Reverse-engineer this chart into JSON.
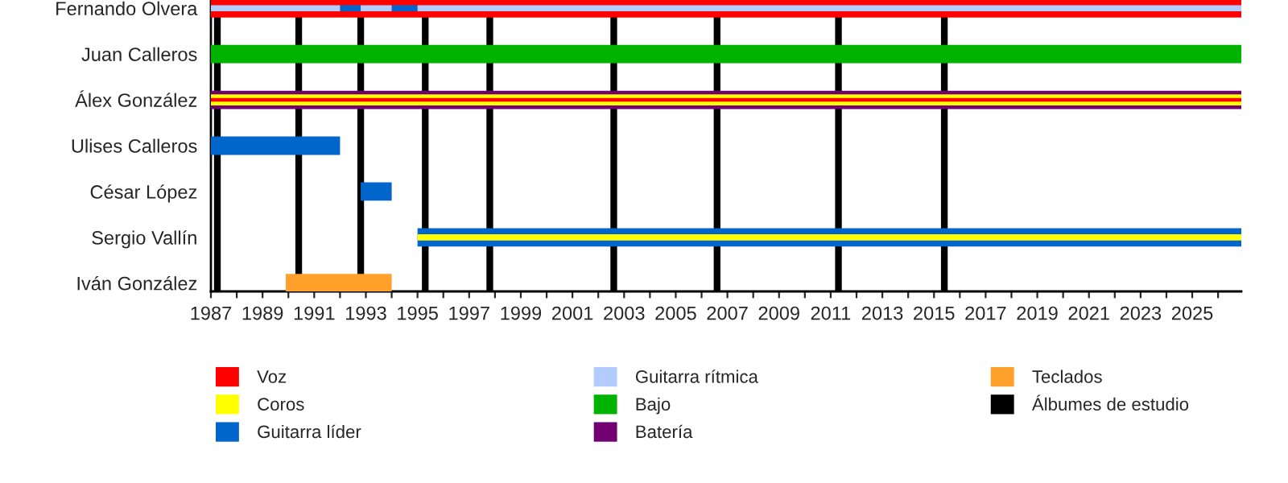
{
  "chart_data": {
    "type": "bar",
    "orientation": "horizontal",
    "categories": [
      "Fernando Olvera",
      "Juan Calleros",
      "Álex González",
      "Ulises Calleros",
      "César López",
      "Sergio Vallín",
      "Iván González"
    ],
    "series": [
      {
        "name": "Voz",
        "color": "#ff0000",
        "base": [
          1987,
          null,
          1987,
          null,
          null,
          null,
          null
        ],
        "values": [
          39.9,
          null,
          39.9,
          null,
          null,
          null,
          null
        ]
      },
      {
        "name": "Coros",
        "color": "#ffff00",
        "base": [
          null,
          null,
          1987,
          null,
          null,
          1995,
          null
        ],
        "values": [
          null,
          null,
          39.9,
          null,
          null,
          31.9,
          null
        ]
      },
      {
        "name": "Guitarra líder",
        "color": "#0066cc",
        "base": [
          1992,
          null,
          null,
          1987,
          1992.8,
          1995,
          null
        ],
        "values": [
          0.8,
          null,
          null,
          5.0,
          1.2,
          31.9,
          null
        ]
      },
      {
        "color": "#0066cc",
        "base": [
          1994,
          null,
          null,
          null,
          null,
          null,
          null
        ],
        "values": [
          1.0,
          null,
          null,
          null,
          null,
          null,
          null
        ]
      },
      {
        "name": "Guitarra rítmica",
        "color": "#b3ccff",
        "base": [
          1987,
          null,
          null,
          null,
          null,
          null,
          null
        ],
        "values": [
          5.0,
          null,
          null,
          null,
          null,
          null,
          null
        ]
      },
      {
        "color": "#b3ccff",
        "base": [
          1992.8,
          null,
          null,
          null,
          null,
          null,
          null
        ],
        "values": [
          1.2,
          null,
          null,
          null,
          null,
          null,
          null
        ]
      },
      {
        "color": "#b3ccff",
        "base": [
          1995,
          null,
          null,
          null,
          null,
          null,
          null
        ],
        "values": [
          31.9,
          null,
          null,
          null,
          null,
          null,
          null
        ]
      },
      {
        "name": "Bajo",
        "color": "#00b300",
        "base": [
          null,
          1987,
          null,
          null,
          null,
          null,
          null
        ],
        "values": [
          null,
          39.9,
          null,
          null,
          null,
          null,
          null
        ]
      },
      {
        "name": "Batería",
        "color": "#730073",
        "base": [
          null,
          null,
          1987,
          null,
          null,
          null,
          null
        ],
        "values": [
          null,
          null,
          39.9,
          null,
          null,
          null,
          null
        ]
      },
      {
        "name": "Teclados",
        "color": "#ffa02a",
        "base": [
          null,
          null,
          null,
          null,
          null,
          null,
          1989.9
        ],
        "values": [
          null,
          null,
          null,
          null,
          null,
          null,
          4.1
        ]
      }
    ],
    "ref_lines": [
      {
        "axis": "x",
        "value": 1987.25,
        "label": "Álbumes de estudio",
        "color": "#000000"
      },
      {
        "axis": "x",
        "value": 1990.4,
        "color": "#000000"
      },
      {
        "axis": "x",
        "value": 1992.8,
        "color": "#000000"
      },
      {
        "axis": "x",
        "value": 1995.3,
        "color": "#000000"
      },
      {
        "axis": "x",
        "value": 1997.8,
        "color": "#000000"
      },
      {
        "axis": "x",
        "value": 2002.6,
        "color": "#000000"
      },
      {
        "axis": "x",
        "value": 2006.6,
        "color": "#000000"
      },
      {
        "axis": "x",
        "value": 2011.3,
        "color": "#000000"
      },
      {
        "axis": "x",
        "value": 2015.4,
        "color": "#000000"
      }
    ],
    "xlim": [
      1987,
      2026.9
    ],
    "xticks": [
      1987,
      {
        "value": 1988,
        "label": null
      },
      1989,
      {
        "value": 1990,
        "label": null
      },
      1991,
      {
        "value": 1992,
        "label": null
      },
      1993,
      {
        "value": 1994,
        "label": null
      },
      1995,
      {
        "value": 1996,
        "label": null
      },
      1997,
      {
        "value": 1998,
        "label": null
      },
      1999,
      {
        "value": 2000,
        "label": null
      },
      2001,
      {
        "value": 2002,
        "label": null
      },
      2003,
      {
        "value": 2004,
        "label": null
      },
      2005,
      {
        "value": 2006,
        "label": null
      },
      2007,
      {
        "value": 2008,
        "label": null
      },
      2009,
      {
        "value": 2010,
        "label": null
      },
      2011,
      {
        "value": 2012,
        "label": null
      },
      2013,
      {
        "value": 2014,
        "label": null
      },
      2015,
      {
        "value": 2016,
        "label": null
      },
      2017,
      {
        "value": 2018,
        "label": null
      },
      2019,
      {
        "value": 2020,
        "label": null
      },
      2021,
      {
        "value": 2022,
        "label": null
      },
      2023,
      {
        "value": 2024,
        "label": null
      },
      2025,
      {
        "value": 2026,
        "label": null
      }
    ],
    "grid": false,
    "legend": "bottom"
  }
}
